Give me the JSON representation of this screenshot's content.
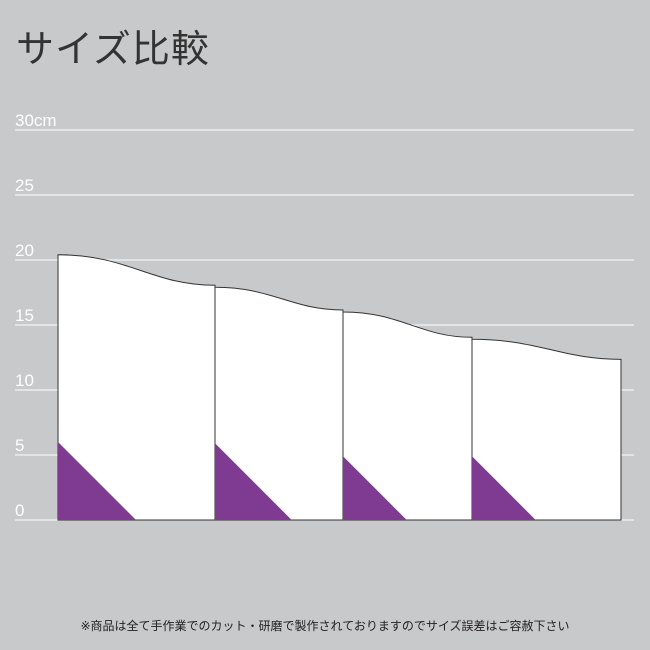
{
  "title": "サイズ比較",
  "note": "※商品は全て手作業でのカット・研磨で製作されておりますのでサイズ誤差はご容赦下さい",
  "chart_data": {
    "type": "diagram",
    "unit": "cm",
    "y_ticks": [
      {
        "value": 30,
        "label": "30cm"
      },
      {
        "value": 25,
        "label": "25"
      },
      {
        "value": 20,
        "label": "20"
      },
      {
        "value": 15,
        "label": "15"
      },
      {
        "value": 10,
        "label": "10"
      },
      {
        "value": 5,
        "label": "5"
      },
      {
        "value": 0,
        "label": "0"
      }
    ],
    "ylim": [
      0,
      30
    ],
    "piece_heights_cm": [
      20.4,
      17.9,
      16.0,
      13.9
    ],
    "end_height_cm": 12.2,
    "triangle_height_cm": [
      6.0,
      5.9,
      4.9,
      4.9
    ]
  },
  "colors": {
    "background": "#c8c9cb",
    "piece": "#ffffff",
    "accent": "#7f3b91",
    "grid": "#ffffff"
  }
}
